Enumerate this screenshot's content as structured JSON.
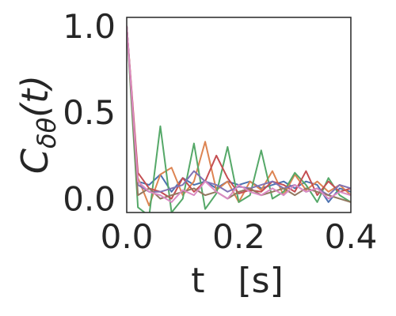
{
  "chart_data": {
    "type": "line",
    "xlabel": "t   [s]",
    "ylabel": "C_{δθ}(t)",
    "xlim": [
      0.0,
      0.4
    ],
    "ylim": [
      -0.08,
      1.05
    ],
    "x_ticks": [
      {
        "value": 0.0,
        "label": "0.0"
      },
      {
        "value": 0.2,
        "label": "0.2"
      },
      {
        "value": 0.4,
        "label": "0.4"
      }
    ],
    "y_ticks": [
      {
        "value": 0.0,
        "label": "0.0"
      },
      {
        "value": 0.5,
        "label": "0.5"
      },
      {
        "value": 1.0,
        "label": "1.0"
      }
    ],
    "grid": false,
    "legend": "none",
    "x": [
      0.0,
      0.02,
      0.04,
      0.06,
      0.08,
      0.1,
      0.12,
      0.14,
      0.16,
      0.18,
      0.2,
      0.22,
      0.24,
      0.26,
      0.28,
      0.3,
      0.32,
      0.34,
      0.36,
      0.38,
      0.4
    ],
    "series": [
      {
        "color": "#4c72b0",
        "values": [
          1.0,
          0.1,
          0.08,
          0.14,
          0.04,
          0.12,
          0.08,
          0.1,
          0.06,
          0.1,
          0.08,
          0.1,
          0.06,
          0.08,
          0.1,
          0.06,
          0.1,
          0.08,
          -0.02,
          0.06,
          0.04
        ]
      },
      {
        "color": "#dd8452",
        "values": [
          1.0,
          0.12,
          -0.04,
          0.14,
          0.18,
          0.02,
          0.1,
          0.33,
          0.05,
          0.1,
          -0.02,
          0.1,
          0.05,
          0.16,
          0.02,
          0.14,
          0.05,
          0.1,
          0.04,
          0.08,
          0.02
        ]
      },
      {
        "color": "#55a868",
        "values": [
          1.0,
          -0.05,
          -0.1,
          0.42,
          -0.08,
          0.0,
          0.32,
          -0.06,
          0.03,
          0.3,
          -0.02,
          0.02,
          0.28,
          0.0,
          0.04,
          0.15,
          0.08,
          -0.02,
          0.12,
          0.02,
          -0.02
        ]
      },
      {
        "color": "#c44e52",
        "values": [
          1.0,
          0.15,
          0.06,
          0.04,
          0.0,
          0.12,
          0.04,
          0.1,
          0.25,
          0.12,
          0.03,
          0.05,
          0.04,
          0.1,
          0.08,
          0.04,
          0.16,
          0.02,
          0.1,
          0.04,
          0.06
        ]
      },
      {
        "color": "#8172b3",
        "values": [
          1.0,
          0.08,
          0.04,
          0.04,
          0.06,
          0.08,
          0.16,
          0.1,
          0.08,
          0.04,
          0.07,
          0.06,
          0.08,
          0.1,
          0.06,
          0.08,
          0.04,
          0.06,
          0.02,
          0.08,
          0.06
        ]
      },
      {
        "color": "#937860",
        "values": [
          1.0,
          0.02,
          0.06,
          0.0,
          0.02,
          0.04,
          0.06,
          0.02,
          0.04,
          0.0,
          0.04,
          0.06,
          0.02,
          0.04,
          0.06,
          0.02,
          0.06,
          0.04,
          0.02,
          0.0,
          -0.02
        ]
      },
      {
        "color": "#da8bc3",
        "values": [
          1.0,
          0.1,
          0.04,
          0.02,
          -0.02,
          0.05,
          0.02,
          0.1,
          0.04,
          0.0,
          0.08,
          0.04,
          0.02,
          0.06,
          0.02,
          0.08,
          0.04,
          0.06,
          0.0,
          0.04,
          0.02
        ]
      }
    ]
  }
}
